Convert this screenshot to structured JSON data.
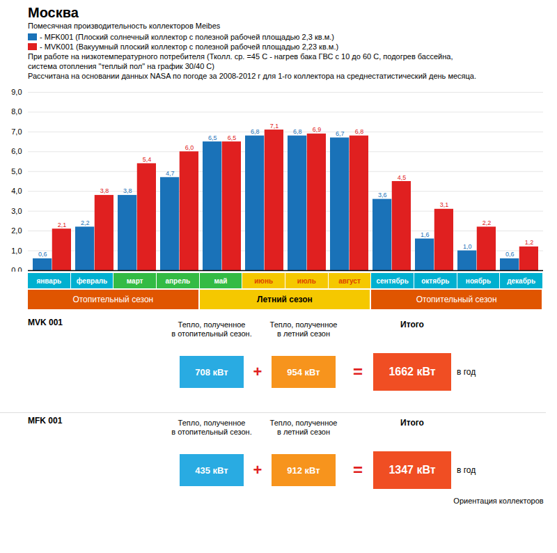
{
  "chart_data": {
    "type": "bar",
    "title": "Москва",
    "subtitle": "Помесячная производительность коллекторов Meibes",
    "notes": [
      "При работе на низкотемпературного потребителя (Тколл. ср. =45 С - нагрев бака ГВС с 10 до 60 С, подогрев бассейна,",
      "система отопления \"теплый пол\" на график 30/40 С)",
      "Рассчитана на основании данных NASA по погоде за 2008-2012 г для 1-го коллектора на среднестатистический день месяца."
    ],
    "categories": [
      "январь",
      "февраль",
      "март",
      "апрель",
      "май",
      "июнь",
      "июль",
      "август",
      "сентябрь",
      "октябрь",
      "ноябрь",
      "декабрь"
    ],
    "series": [
      {
        "name": "- MFK001 (Плоский солнечный коллектор с полезной рабочей площадью 2,3 кв.м.)",
        "color": "#1a72b8",
        "values": [
          0.6,
          2.2,
          3.8,
          4.7,
          6.5,
          6.8,
          6.8,
          6.7,
          3.6,
          1.6,
          1.0,
          0.6
        ],
        "value_labels": [
          "0,6",
          "2,2",
          "3,8",
          "4,7",
          "6,5",
          "6,8",
          "6,8",
          "6,7",
          "3,6",
          "1,6",
          "1,0",
          "0,6"
        ]
      },
      {
        "name": "- MVK001 (Вакуумный плоский коллектор с полезной рабочей площадью 2,23 кв.м.)",
        "color": "#e02020",
        "values": [
          2.1,
          3.8,
          5.4,
          6.0,
          6.5,
          7.1,
          6.9,
          6.8,
          4.5,
          3.1,
          2.2,
          1.2
        ],
        "value_labels": [
          "2,1",
          "3,8",
          "5,4",
          "6,0",
          "6,5",
          "7,1",
          "6,9",
          "6,8",
          "4,5",
          "3,1",
          "2,2",
          "1,2"
        ]
      }
    ],
    "ylim": [
      0,
      9
    ],
    "yticks": [
      {
        "value": 0,
        "label": "0,0"
      },
      {
        "value": 1,
        "label": "1,0"
      },
      {
        "value": 2,
        "label": "2,0"
      },
      {
        "value": 3,
        "label": "3,0"
      },
      {
        "value": 4,
        "label": "4,0"
      },
      {
        "value": 5,
        "label": "5,0"
      },
      {
        "value": 6,
        "label": "6,0"
      },
      {
        "value": 7,
        "label": "7,0"
      },
      {
        "value": 8,
        "label": "8,0"
      },
      {
        "value": 9,
        "label": "9,0"
      }
    ],
    "grid": true,
    "data_labels": true,
    "legend": "top-left",
    "month_colors": [
      "#00b0d0",
      "#00b0d0",
      "#33bb44",
      "#33bb44",
      "#33bb44",
      "#f5c800",
      "#f5c800",
      "#f5c800",
      "#00b0d0",
      "#00b0d0",
      "#00b0d0",
      "#00b0d0"
    ],
    "month_text_colors": [
      "#ffffff",
      "#ffffff",
      "#ffffff",
      "#ffffff",
      "#ffffff",
      "#dd4400",
      "#dd4400",
      "#dd4400",
      "#ffffff",
      "#ffffff",
      "#ffffff",
      "#ffffff"
    ],
    "seasons": [
      {
        "label": "Отопительный сезон",
        "start": "январь",
        "end": "апрель",
        "color": "#e05500",
        "text_color": "#ffffff",
        "bold": false
      },
      {
        "label": "Летний сезон",
        "start": "май",
        "end": "август",
        "color": "#f5c800",
        "text_color": "#000000",
        "bold": true
      },
      {
        "label": "Отопительный сезон",
        "start": "сентябрь",
        "end": "декабрь",
        "color": "#e05500",
        "text_color": "#ffffff",
        "bold": false
      }
    ],
    "summary": {
      "heat_label": "Тепло, полученное\nв отопительный сезон.",
      "summer_label": "Тепло, полученное\nв летний сезон",
      "total_label": "Итого",
      "per_year": "в год",
      "plus": "+",
      "equals": "=",
      "symbol_color": "#e02020",
      "colors": {
        "heating": "#29abe2",
        "summer": "#f7941d",
        "total": "#f04e23"
      },
      "rows": [
        {
          "name": "MVK 001",
          "heating": "708 кВт",
          "summer": "954 кВт",
          "total": "1662 кВт"
        },
        {
          "name": "MFK 001",
          "heating": "435 кВт",
          "summer": "912 кВт",
          "total": "1347 кВт"
        }
      ]
    },
    "orientation_text": "Ориентация коллекторов"
  }
}
